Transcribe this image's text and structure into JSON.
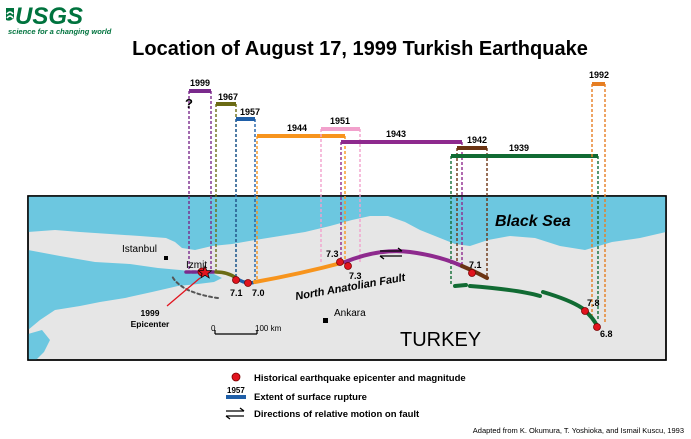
{
  "logo": {
    "name": "USGS",
    "tagline": "science for a changing world",
    "color": "#00733e"
  },
  "title": "Location of August 17, 1999 Turkish Earthquake",
  "colors": {
    "sea": "#6cc7e0",
    "land": "#e6e6e6",
    "ink": "#000000",
    "epicenter": "#e1141e",
    "rupture_1957": "#1f5fa8",
    "rupture_1999": "#7a2a8c",
    "rupture_1967": "#6b6b14",
    "rupture_1944": "#f7941d",
    "rupture_1951": "#f2a1cc",
    "rupture_1943": "#8e2a8e",
    "rupture_1942": "#6b3413",
    "rupture_1939": "#116b33",
    "rupture_1992": "#e67e22"
  },
  "ruptures": [
    {
      "year": "1999",
      "question_mark": "?"
    },
    {
      "year": "1967"
    },
    {
      "year": "1957"
    },
    {
      "year": "1944"
    },
    {
      "year": "1951"
    },
    {
      "year": "1943"
    },
    {
      "year": "1942"
    },
    {
      "year": "1939"
    },
    {
      "year": "1992"
    }
  ],
  "map": {
    "sea_label": "Black Sea",
    "country_label": "TURKEY",
    "fault_label": "North Anatolian Fault",
    "cities": [
      {
        "name": "Istanbul"
      },
      {
        "name": "Izmit"
      },
      {
        "name": "Ankara"
      }
    ],
    "epicenter_callout": {
      "line1": "1999",
      "line2": "Epicenter"
    },
    "magnitudes": [
      "7.1",
      "7.0",
      "7.3",
      "7.3",
      "7.1",
      "7.8",
      "6.8"
    ],
    "scale_bar": {
      "start": "0",
      "end": "100 km"
    }
  },
  "legend": {
    "epicenter": "Historical earthquake epicenter and magnitude",
    "rupture_sample_year": "1957",
    "rupture": "Extent of surface rupture",
    "motion": "Directions of relative motion on fault"
  },
  "credit": "Adapted from K. Okumura, T. Yoshioka, and Ismail Kuscu, 1993"
}
